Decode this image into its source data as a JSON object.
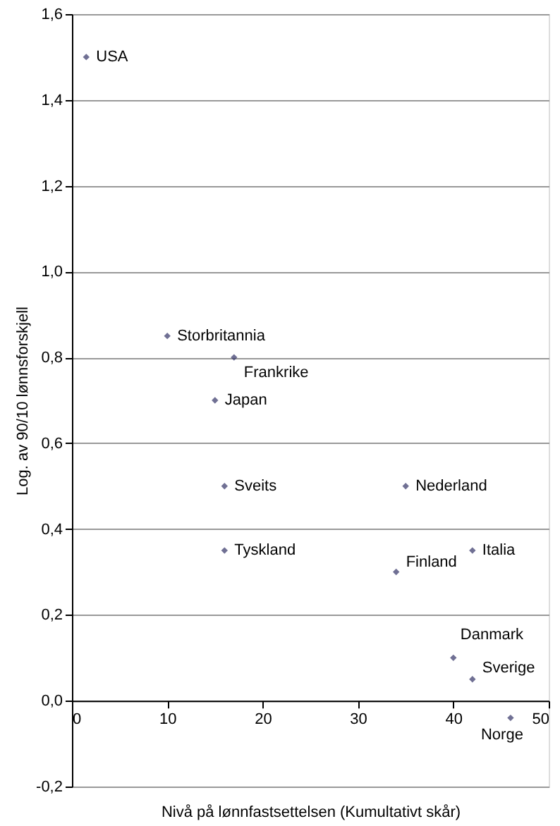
{
  "chart_data": {
    "type": "scatter",
    "xlabel": "Nivå på lønnfastsettelsen (Kumultativt skår)",
    "ylabel": "Log. av 90/10 lønnsforskjell",
    "x": [
      1.5,
      10,
      17,
      15,
      16,
      35,
      16,
      42,
      34,
      40,
      42,
      46
    ],
    "series": [
      {
        "color": "#333366",
        "values": [
          1.5,
          0.85,
          0.8,
          0.7,
          0.5,
          0.5,
          0.35,
          0.35,
          0.3,
          0.1,
          0.05,
          -0.04
        ]
      }
    ],
    "marker": "diamond",
    "grid": "y",
    "xlim": [
      0,
      50
    ],
    "xticks": [
      0,
      10,
      20,
      30,
      40,
      50
    ],
    "ylim": [
      -0.2,
      1.6
    ],
    "yticks": [
      {
        "value": -0.2,
        "label": "-0,2"
      },
      {
        "value": 0,
        "label": "0,0"
      },
      {
        "value": 0.2,
        "label": "0,2"
      },
      {
        "value": 0.4,
        "label": "0,4"
      },
      {
        "value": 0.6,
        "label": "0,6"
      },
      {
        "value": 0.8,
        "label": "0,8"
      },
      {
        "value": 1.0,
        "label": "1,0"
      },
      {
        "value": 1.2,
        "label": "1,2"
      },
      {
        "value": 1.4,
        "label": "1,4"
      },
      {
        "value": 1.6,
        "label": "1,6"
      }
    ],
    "annotations": [
      {
        "text": "USA",
        "x": 1.5,
        "y": 1.5
      },
      {
        "text": "Storbritannia",
        "x": 10,
        "y": 0.85
      },
      {
        "text": "Frankrike",
        "x": 17,
        "y": 0.8
      },
      {
        "text": "Japan",
        "x": 15,
        "y": 0.7
      },
      {
        "text": "Sveits",
        "x": 16,
        "y": 0.5
      },
      {
        "text": "Nederland",
        "x": 35,
        "y": 0.5
      },
      {
        "text": "Tyskland",
        "x": 16,
        "y": 0.35
      },
      {
        "text": "Italia",
        "x": 42,
        "y": 0.35
      },
      {
        "text": "Finland",
        "x": 34,
        "y": 0.3
      },
      {
        "text": "Danmark",
        "x": 40,
        "y": 0.1
      },
      {
        "text": "Sverige",
        "x": 42,
        "y": 0.05
      },
      {
        "text": "Norge",
        "x": 46,
        "y": -0.04
      }
    ]
  }
}
